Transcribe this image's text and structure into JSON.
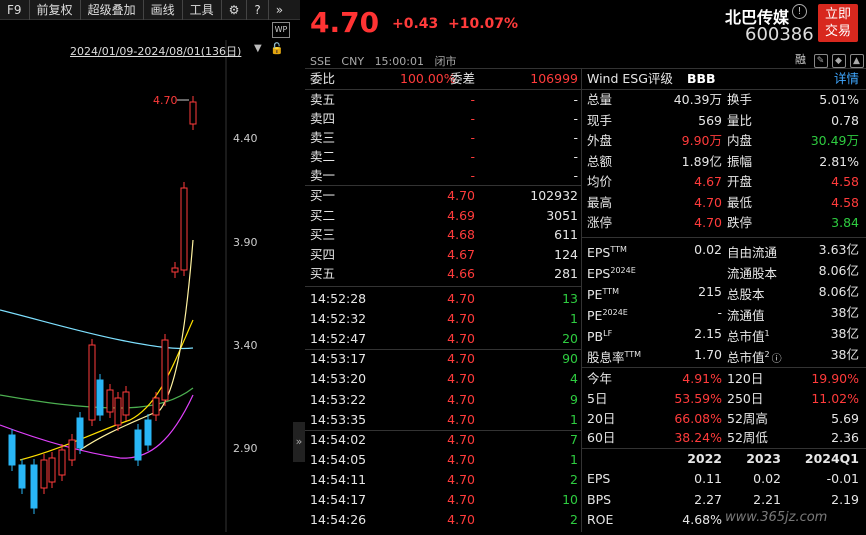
{
  "toolbar": {
    "items": [
      "F9",
      "前复权",
      "超级叠加",
      "画线",
      "工具"
    ],
    "icons": [
      "gear-icon",
      "help-icon",
      "double-chevron-right-icon"
    ]
  },
  "chart": {
    "range": "2024/01/09-2024/08/01(136日)",
    "price_tag": "4.70",
    "yticks": [
      "4.40",
      "3.90",
      "3.40",
      "2.90"
    ],
    "collapse": "»"
  },
  "quote": {
    "price": "4.70",
    "change": "+0.43",
    "change_pct": "+10.07%",
    "name": "北巴传媒",
    "code": "600386",
    "exchange": "SSE",
    "currency": "CNY",
    "time": "15:00:01",
    "status": "闭市",
    "trade_btn_1": "立即",
    "trade_btn_2": "交易",
    "misc_label": "融"
  },
  "weibi": {
    "l1": "委比",
    "v1": "100.00%",
    "l2": "委差",
    "v2": "106999"
  },
  "asks": [
    {
      "label": "卖五",
      "price": "-",
      "vol": "-"
    },
    {
      "label": "卖四",
      "price": "-",
      "vol": "-"
    },
    {
      "label": "卖三",
      "price": "-",
      "vol": "-"
    },
    {
      "label": "卖二",
      "price": "-",
      "vol": "-"
    },
    {
      "label": "卖一",
      "price": "-",
      "vol": "-"
    }
  ],
  "bids": [
    {
      "label": "买一",
      "price": "4.70",
      "vol": "102932"
    },
    {
      "label": "买二",
      "price": "4.69",
      "vol": "3051"
    },
    {
      "label": "买三",
      "price": "4.68",
      "vol": "611"
    },
    {
      "label": "买四",
      "price": "4.67",
      "vol": "124"
    },
    {
      "label": "买五",
      "price": "4.66",
      "vol": "281"
    }
  ],
  "ticks": [
    {
      "time": "14:52:28",
      "price": "4.70",
      "vol": "13"
    },
    {
      "time": "14:52:32",
      "price": "4.70",
      "vol": "1"
    },
    {
      "time": "14:52:47",
      "price": "4.70",
      "vol": "20"
    },
    {
      "time": "14:53:17",
      "price": "4.70",
      "vol": "90"
    },
    {
      "time": "14:53:20",
      "price": "4.70",
      "vol": "4"
    },
    {
      "time": "14:53:22",
      "price": "4.70",
      "vol": "9"
    },
    {
      "time": "14:53:35",
      "price": "4.70",
      "vol": "1"
    },
    {
      "time": "14:54:02",
      "price": "4.70",
      "vol": "7"
    },
    {
      "time": "14:54:05",
      "price": "4.70",
      "vol": "1"
    },
    {
      "time": "14:54:11",
      "price": "4.70",
      "vol": "2"
    },
    {
      "time": "14:54:17",
      "price": "4.70",
      "vol": "10"
    },
    {
      "time": "14:54:26",
      "price": "4.70",
      "vol": "2"
    }
  ],
  "esg": {
    "label": "Wind ESG评级",
    "rating": "BBB",
    "detail": "详情"
  },
  "stats": [
    {
      "l": "总量",
      "v": "40.39万",
      "l2": "换手",
      "v2": "5.01%",
      "c": "white",
      "c2": "white"
    },
    {
      "l": "现手",
      "v": "569",
      "l2": "量比",
      "v2": "0.78",
      "c": "white",
      "c2": "white"
    },
    {
      "l": "外盘",
      "v": "9.90万",
      "l2": "内盘",
      "v2": "30.49万",
      "c": "red",
      "c2": "green"
    },
    {
      "l": "总额",
      "v": "1.89亿",
      "l2": "振幅",
      "v2": "2.81%",
      "c": "white",
      "c2": "white"
    },
    {
      "l": "均价",
      "v": "4.67",
      "l2": "开盘",
      "v2": "4.58",
      "c": "red",
      "c2": "red"
    },
    {
      "l": "最高",
      "v": "4.70",
      "l2": "最低",
      "v2": "4.58",
      "c": "red",
      "c2": "red"
    },
    {
      "l": "涨停",
      "v": "4.70",
      "l2": "跌停",
      "v2": "3.84",
      "c": "red",
      "c2": "green"
    }
  ],
  "fin": [
    {
      "l": "EPS",
      "sup": "TTM",
      "v": "0.02",
      "l2": "自由流通",
      "sup2": "",
      "v2": "3.63亿"
    },
    {
      "l": "EPS",
      "sup": "2024E",
      "v": "",
      "l2": "流通股本",
      "sup2": "",
      "v2": "8.06亿"
    },
    {
      "l": "PE",
      "sup": "TTM",
      "v": "215",
      "l2": "总股本",
      "sup2": "",
      "v2": "8.06亿"
    },
    {
      "l": "PE",
      "sup": "2024E",
      "v": "-",
      "l2": "流通值",
      "sup2": "",
      "v2": "38亿"
    },
    {
      "l": "PB",
      "sup": "LF",
      "v": "2.15",
      "l2": "总市值",
      "sup2": "1",
      "v2": "38亿"
    },
    {
      "l": "股息率",
      "sup": "TTM",
      "v": "1.70",
      "l2": "总市值",
      "sup2": "2",
      "v2": "38亿"
    }
  ],
  "perf": [
    {
      "l": "今年",
      "v": "4.91%",
      "l2": "120日",
      "v2": "19.90%",
      "c": "red",
      "c2": "red"
    },
    {
      "l": "5日",
      "v": "53.59%",
      "l2": "250日",
      "v2": "11.02%",
      "c": "red",
      "c2": "red"
    },
    {
      "l": "20日",
      "v": "66.08%",
      "l2": "52周高",
      "v2": "5.69",
      "c": "red",
      "c2": "white"
    },
    {
      "l": "60日",
      "v": "38.24%",
      "l2": "52周低",
      "v2": "2.36",
      "c": "red",
      "c2": "white"
    }
  ],
  "yearly": {
    "headers": [
      "2022",
      "2023",
      "2024Q1"
    ],
    "rows": [
      {
        "l": "EPS",
        "vals": [
          "0.11",
          "0.02",
          "-0.01"
        ]
      },
      {
        "l": "BPS",
        "vals": [
          "2.27",
          "2.21",
          "2.19"
        ]
      },
      {
        "l": "ROE",
        "vals": [
          "4.68%",
          "",
          ""
        ]
      }
    ]
  },
  "watermark": "www.365jz.com"
}
